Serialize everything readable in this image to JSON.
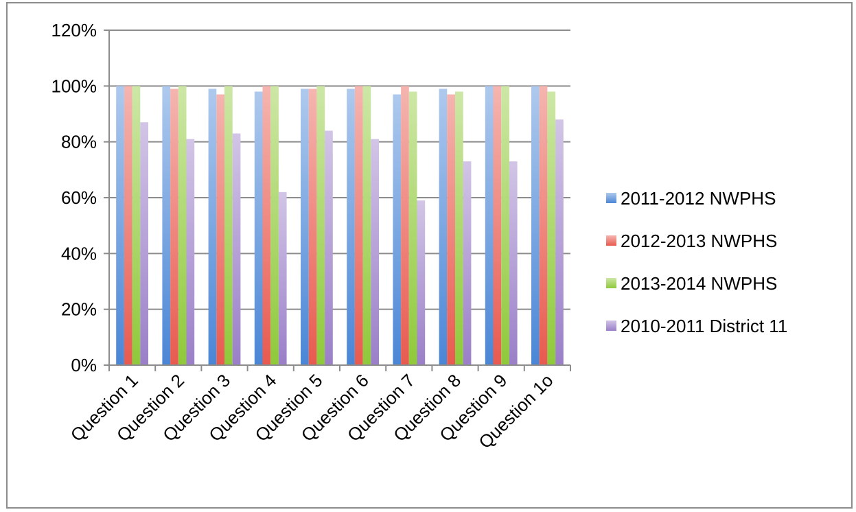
{
  "chart_data": {
    "type": "bar",
    "categories": [
      "Question 1",
      "Question 2",
      "Question 3",
      "Question 4",
      "Question 5",
      "Question 6",
      "Question 7",
      "Question 8",
      "Question 9",
      "Question 1o"
    ],
    "series": [
      {
        "name": "2011-2012 NWPHS",
        "color": "#4a86d6",
        "values": [
          100,
          100,
          99,
          98,
          99,
          99,
          97,
          99,
          100,
          100
        ]
      },
      {
        "name": "2012-2013 NWPHS",
        "color": "#e85a4f",
        "values": [
          100,
          99,
          97,
          100,
          99,
          100,
          100,
          97,
          100,
          100
        ]
      },
      {
        "name": "2013-2014 NWPHS",
        "color": "#8fc93a",
        "values": [
          100,
          100,
          100,
          100,
          100,
          100,
          98,
          98,
          100,
          98
        ]
      },
      {
        "name": "2010-2011 District 11",
        "color": "#9a7fc8",
        "values": [
          87,
          81,
          83,
          62,
          84,
          81,
          59,
          73,
          73,
          88
        ]
      }
    ],
    "yticks": [
      "0%",
      "20%",
      "40%",
      "60%",
      "80%",
      "100%",
      "120%"
    ],
    "ylim": [
      0,
      120
    ],
    "grid": true,
    "legend_position": "right",
    "title": "",
    "xlabel": "",
    "ylabel": ""
  }
}
